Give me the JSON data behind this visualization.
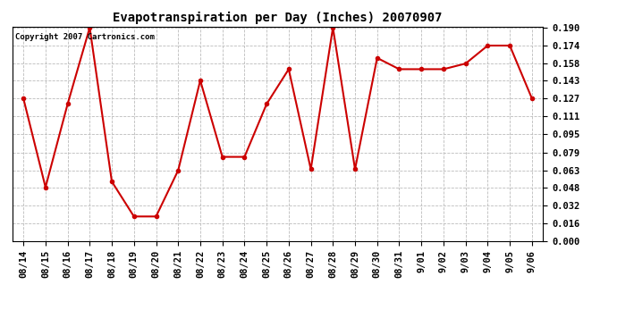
{
  "title": "Evapotranspiration per Day (Inches) 20070907",
  "copyright_text": "Copyright 2007 Cartronics.com",
  "x_labels": [
    "08/14",
    "08/15",
    "08/16",
    "08/17",
    "08/18",
    "08/19",
    "08/20",
    "08/21",
    "08/22",
    "08/23",
    "08/24",
    "08/25",
    "08/26",
    "08/27",
    "08/28",
    "08/29",
    "08/30",
    "08/31",
    "9/01",
    "9/02",
    "9/03",
    "9/04",
    "9/05",
    "9/06"
  ],
  "y_values": [
    0.127,
    0.048,
    0.122,
    0.19,
    0.053,
    0.022,
    0.022,
    0.063,
    0.143,
    0.075,
    0.075,
    0.122,
    0.153,
    0.064,
    0.19,
    0.064,
    0.163,
    0.153,
    0.153,
    0.153,
    0.158,
    0.174,
    0.174,
    0.127
  ],
  "line_color": "#cc0000",
  "marker": "o",
  "marker_size": 3,
  "marker_color": "#cc0000",
  "bg_color": "#ffffff",
  "grid_color": "#bbbbbb",
  "y_min": 0.0,
  "y_max": 0.1907,
  "y_ticks": [
    0.0,
    0.016,
    0.032,
    0.048,
    0.063,
    0.079,
    0.095,
    0.111,
    0.127,
    0.143,
    0.158,
    0.174,
    0.19
  ],
  "title_fontsize": 10,
  "tick_fontsize": 7.5,
  "copyright_fontsize": 6.5
}
